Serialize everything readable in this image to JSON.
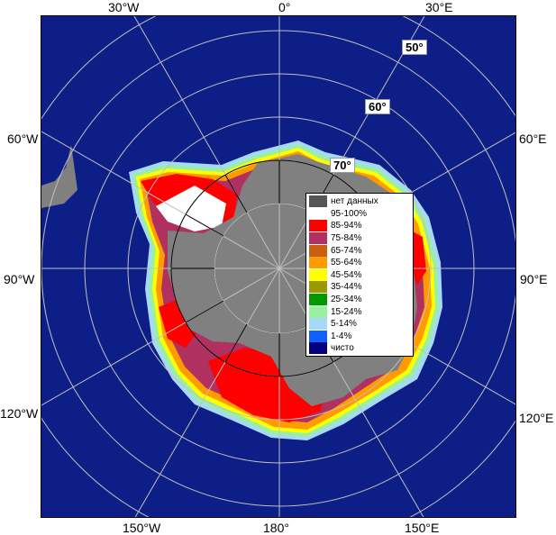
{
  "labels": {
    "top": [
      "30°W",
      "0°",
      "30°E"
    ],
    "left": [
      "60°W",
      "90°W",
      "120°W"
    ],
    "right": [
      "60°E",
      "90°E",
      "120°E"
    ],
    "bottom": [
      "150°W",
      "180°",
      "150°E"
    ],
    "latitudes": [
      "50°",
      "60°",
      "70°"
    ]
  },
  "colors": {
    "ocean": "#0d1e87",
    "land": "#808080",
    "grid": "#c0c0c0",
    "no_data": "#555555"
  },
  "legend": [
    {
      "label": "нет данных",
      "color": "#555555"
    },
    {
      "label": "95-100%",
      "color": "#ffffff"
    },
    {
      "label": "85-94%",
      "color": "#ff0000"
    },
    {
      "label": "75-84%",
      "color": "#b03060"
    },
    {
      "label": "65-74%",
      "color": "#c86010"
    },
    {
      "label": "55-64%",
      "color": "#ff9a00"
    },
    {
      "label": "45-54%",
      "color": "#ffff00"
    },
    {
      "label": "35-44%",
      "color": "#9a9a00"
    },
    {
      "label": "25-34%",
      "color": "#009a00"
    },
    {
      "label": "15-24%",
      "color": "#98f0a0"
    },
    {
      "label": "5-14%",
      "color": "#a8d8f8"
    },
    {
      "label": "1-4%",
      "color": "#1060ff"
    },
    {
      "label": "чисто",
      "color": "#000080"
    }
  ]
}
